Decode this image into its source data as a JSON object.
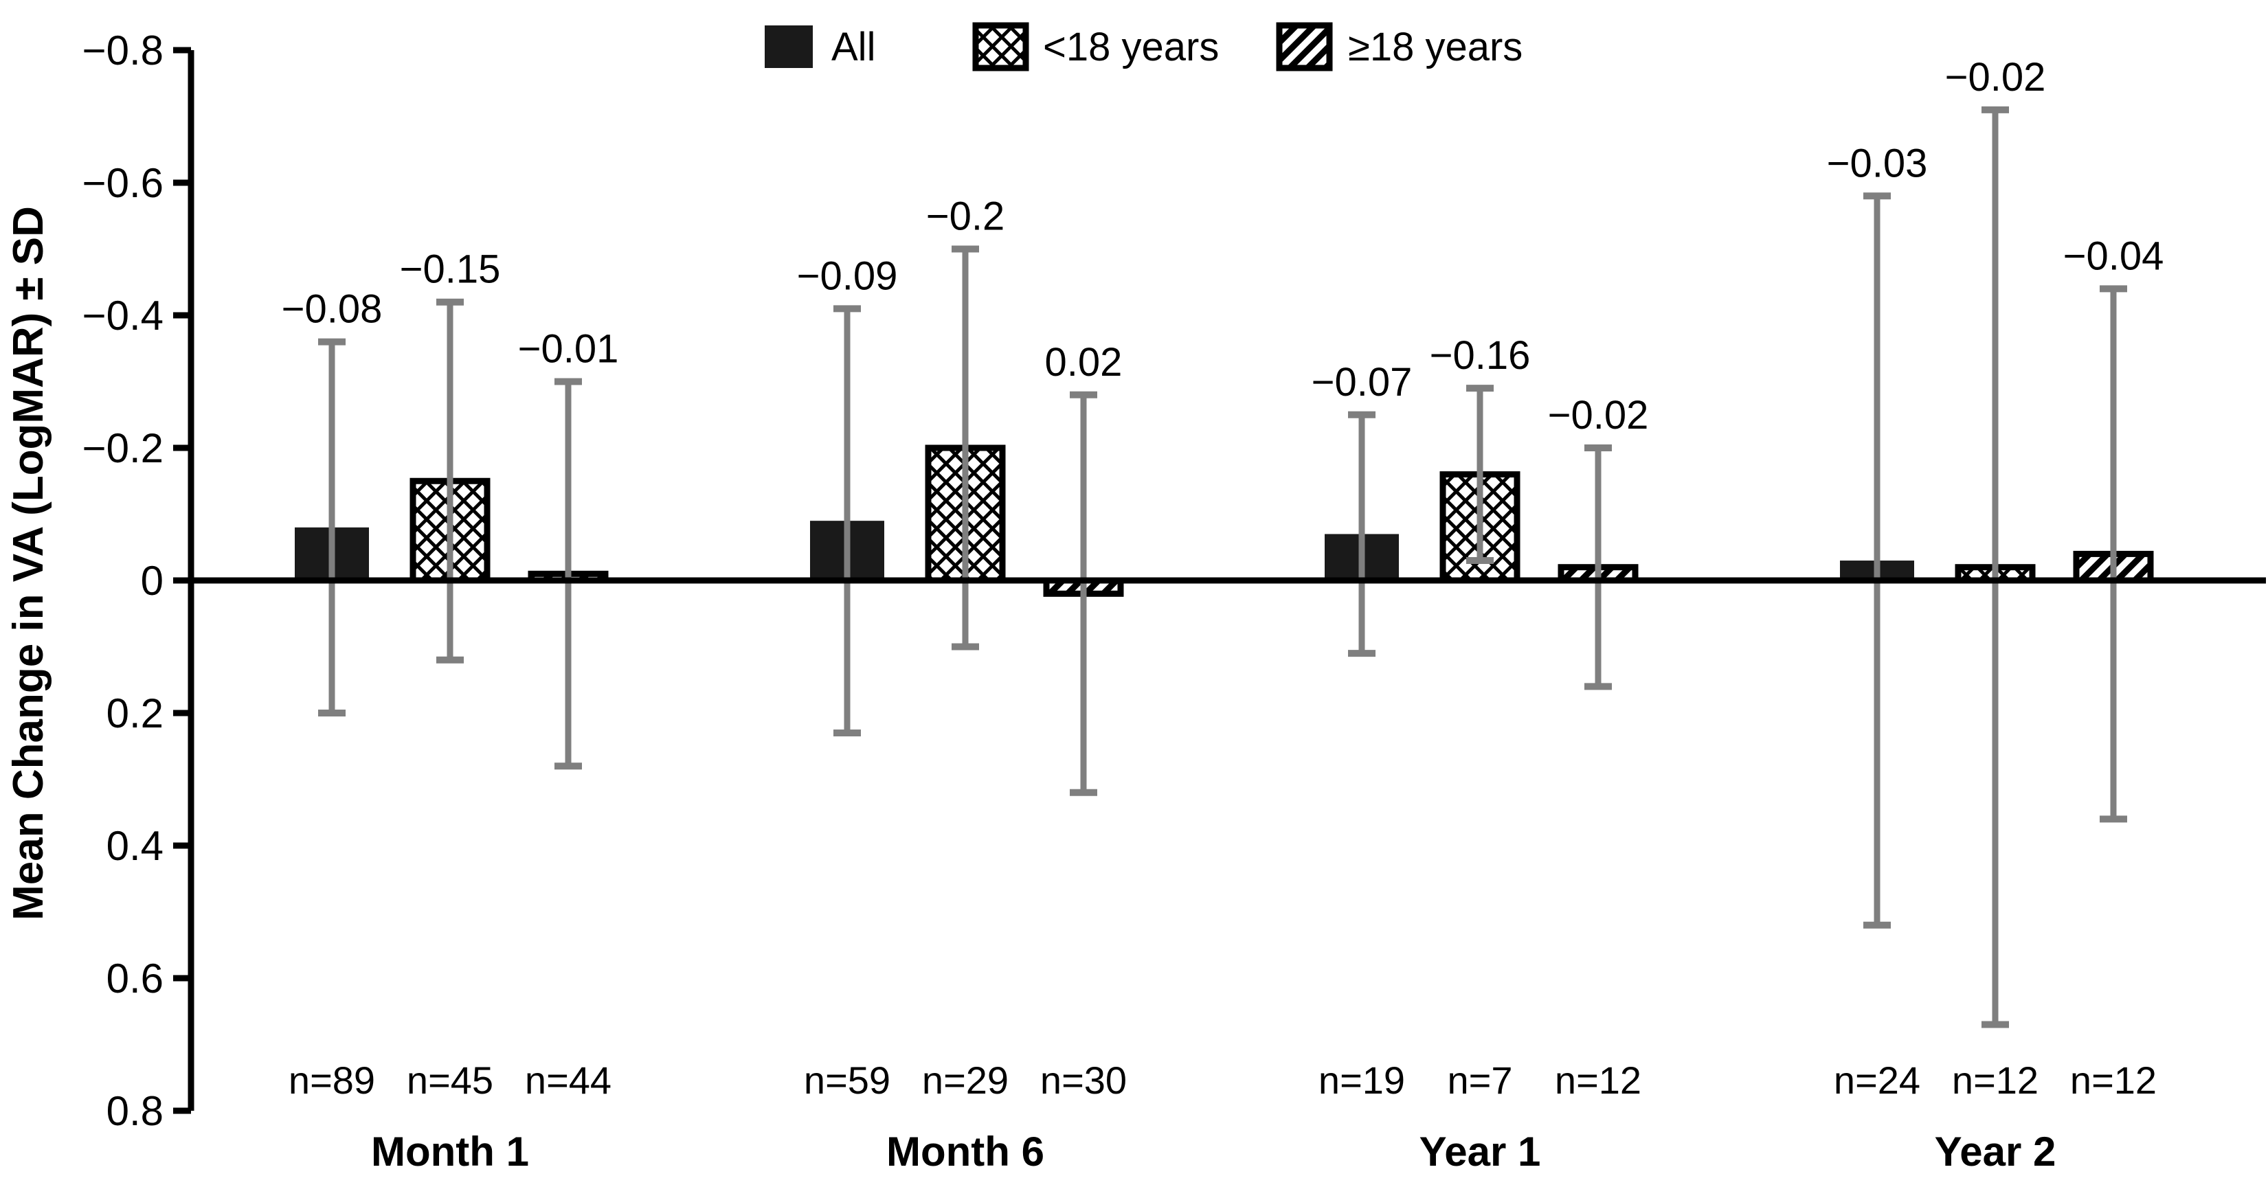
{
  "figure_title": "",
  "chart_data": {
    "type": "bar",
    "title": "",
    "xlabel": "",
    "ylabel": "Mean Change in VA (LogMAR) ± SD",
    "y_axis_inverted": true,
    "ylim": [
      -0.8,
      0.8
    ],
    "yticks": [
      -0.8,
      -0.6,
      -0.4,
      -0.2,
      0,
      0.2,
      0.4,
      0.6,
      0.8
    ],
    "ytick_labels": [
      "−0.8",
      "−0.6",
      "−0.4",
      "−0.2",
      "0",
      "0.2",
      "0.4",
      "0.6",
      "0.8"
    ],
    "grid": false,
    "legend_position": "top",
    "error_bars": "mean ± SD",
    "categories": [
      "Month 1",
      "Month 6",
      "Year 1",
      "Year 2"
    ],
    "series": [
      {
        "name": "All",
        "pattern": "solid",
        "values": [
          -0.08,
          -0.09,
          -0.07,
          -0.03
        ],
        "value_labels": [
          "−0.08",
          "−0.09",
          "−0.07",
          "−0.03"
        ],
        "sd": [
          0.28,
          0.32,
          0.18,
          0.55
        ],
        "n": [
          89,
          59,
          19,
          24
        ],
        "n_labels": [
          "n=89",
          "n=59",
          "n=19",
          "n=24"
        ]
      },
      {
        "name": "<18 years",
        "pattern": "crosshatch",
        "values": [
          -0.15,
          -0.2,
          -0.16,
          -0.02
        ],
        "value_labels": [
          "−0.15",
          "−0.2",
          "−0.16",
          "−0.02"
        ],
        "sd": [
          0.27,
          0.3,
          0.13,
          0.69
        ],
        "n": [
          45,
          29,
          7,
          12
        ],
        "n_labels": [
          "n=45",
          "n=29",
          "n=7",
          "n=12"
        ]
      },
      {
        "name": "≥18 years",
        "pattern": "diagonal",
        "values": [
          -0.01,
          0.02,
          -0.02,
          -0.04
        ],
        "value_labels": [
          "−0.01",
          "0.02",
          "−0.02",
          "−0.04"
        ],
        "sd": [
          0.29,
          0.3,
          0.18,
          0.4
        ],
        "n": [
          44,
          30,
          12,
          12
        ],
        "n_labels": [
          "n=44",
          "n=30",
          "n=12",
          "n=12"
        ]
      }
    ],
    "colors": {
      "bar_fill": "#1a1a1a",
      "pattern_stroke": "#000000",
      "error_bar": "#7f7f7f",
      "axis": "#000000",
      "text": "#000000",
      "background": "#ffffff"
    }
  },
  "legend": {
    "items": [
      {
        "label": "All",
        "pattern": "solid"
      },
      {
        "label": "<18 years",
        "pattern": "crosshatch"
      },
      {
        "label": "≥18 years",
        "pattern": "diagonal"
      }
    ]
  }
}
